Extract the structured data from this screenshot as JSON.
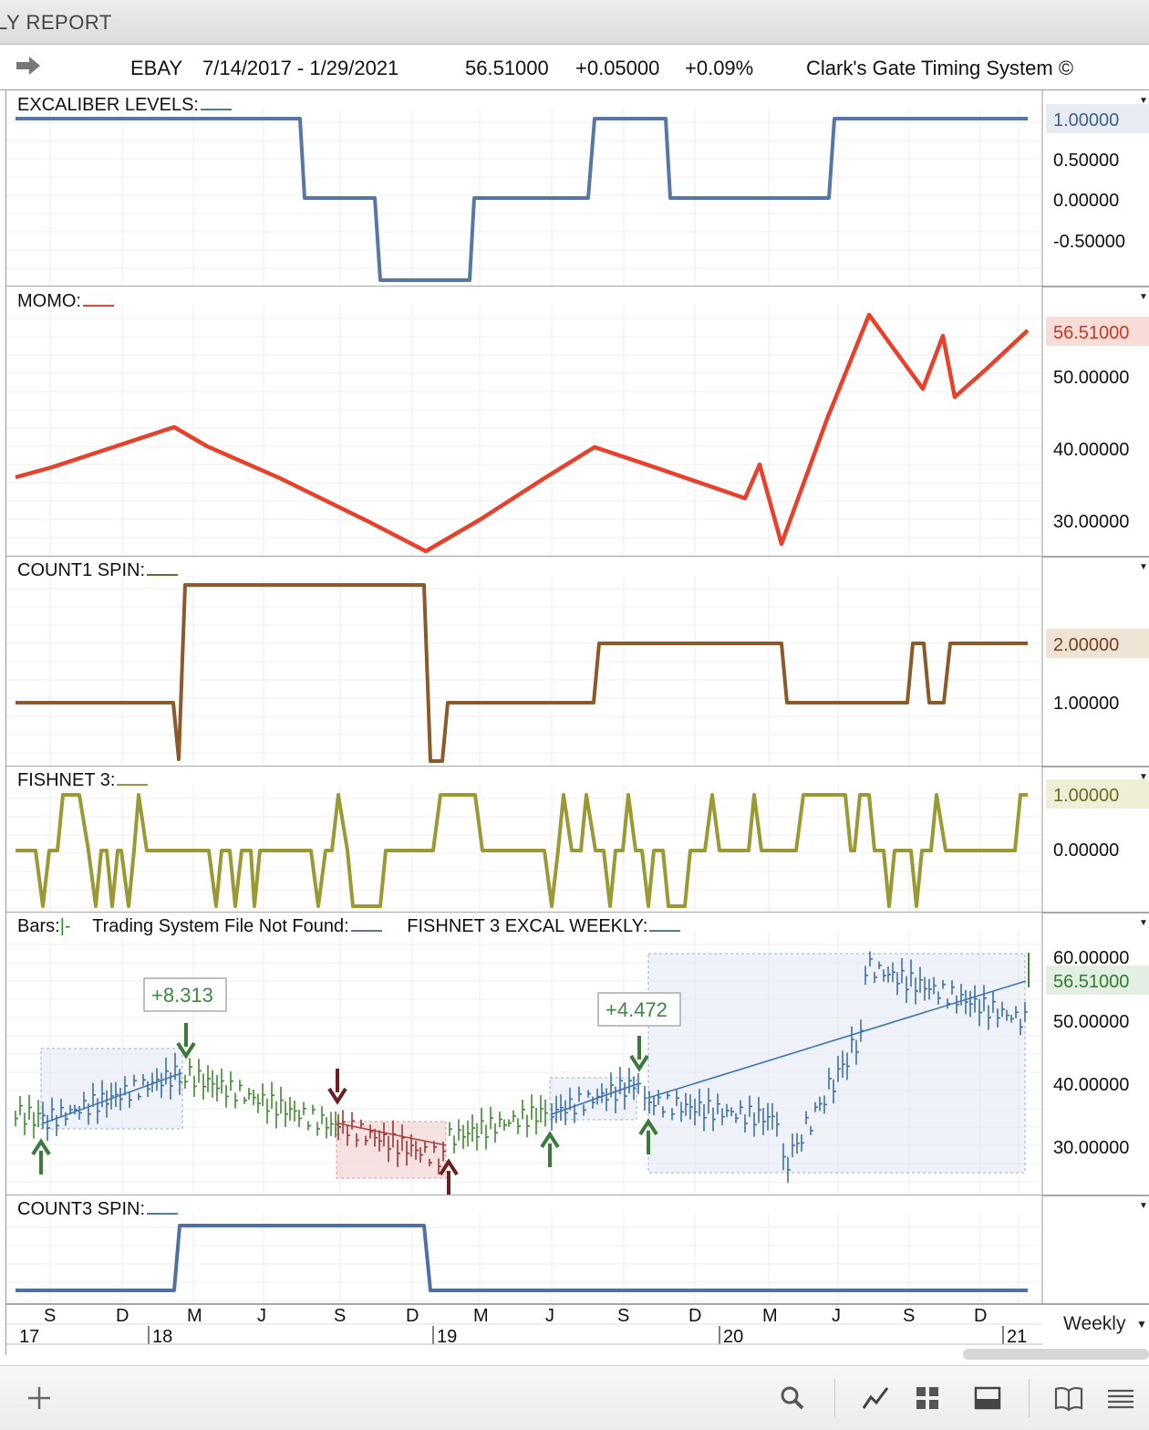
{
  "window": {
    "title": "LY REPORT"
  },
  "header": {
    "symbol": "EBAY",
    "date_range": "7/14/2017 - 1/29/2021",
    "last": "56.51000",
    "change": "+0.05000",
    "change_pct": "+0.09%",
    "system": "Clark's Gate Timing System ©"
  },
  "panes": {
    "excaliber": {
      "label": "EXCALIBER LEVELS:",
      "color": "#5677a6",
      "axis": [
        "0.50000",
        "0.00000",
        "-0.50000"
      ],
      "value_badge": "1.00000"
    },
    "momo": {
      "label": "MOMO:",
      "color": "#e8402a",
      "axis": [
        "50.00000",
        "40.00000",
        "30.00000"
      ],
      "value_badge": "56.51000"
    },
    "count1": {
      "label": "COUNT1 SPIN:",
      "color": "#8b5a2b",
      "axis": [
        "1.00000"
      ],
      "value_badge": "2.00000"
    },
    "fishnet": {
      "label": "FISHNET 3:",
      "color": "#9a9a35",
      "axis": [
        "0.00000"
      ],
      "value_badge": "1.00000"
    },
    "bars": {
      "label": "Bars:",
      "label_sep": "|-",
      "label2": "Trading System File Not Found:",
      "label3": "FISHNET 3 EXCAL WEEKLY:",
      "axis": [
        "60.00000",
        "50.00000",
        "40.00000",
        "30.00000"
      ],
      "value_badge": "56.51000",
      "trade1": "+8.313",
      "trade2": "+4.472"
    },
    "count3": {
      "label": "COUNT3 SPIN:",
      "color": "#4f6fa5"
    }
  },
  "time_axis": {
    "months": [
      "S",
      "D",
      "M",
      "J",
      "S",
      "D",
      "M",
      "J",
      "S",
      "D",
      "M",
      "J",
      "S",
      "D"
    ],
    "years": [
      "17",
      "18",
      "19",
      "20",
      "21"
    ],
    "period": "Weekly"
  },
  "toolbar": {
    "icons": [
      "add-icon",
      "search-icon",
      "line-chart-icon",
      "grid-layout-icon",
      "panel-icon",
      "book-icon",
      "menu-icon"
    ]
  }
}
